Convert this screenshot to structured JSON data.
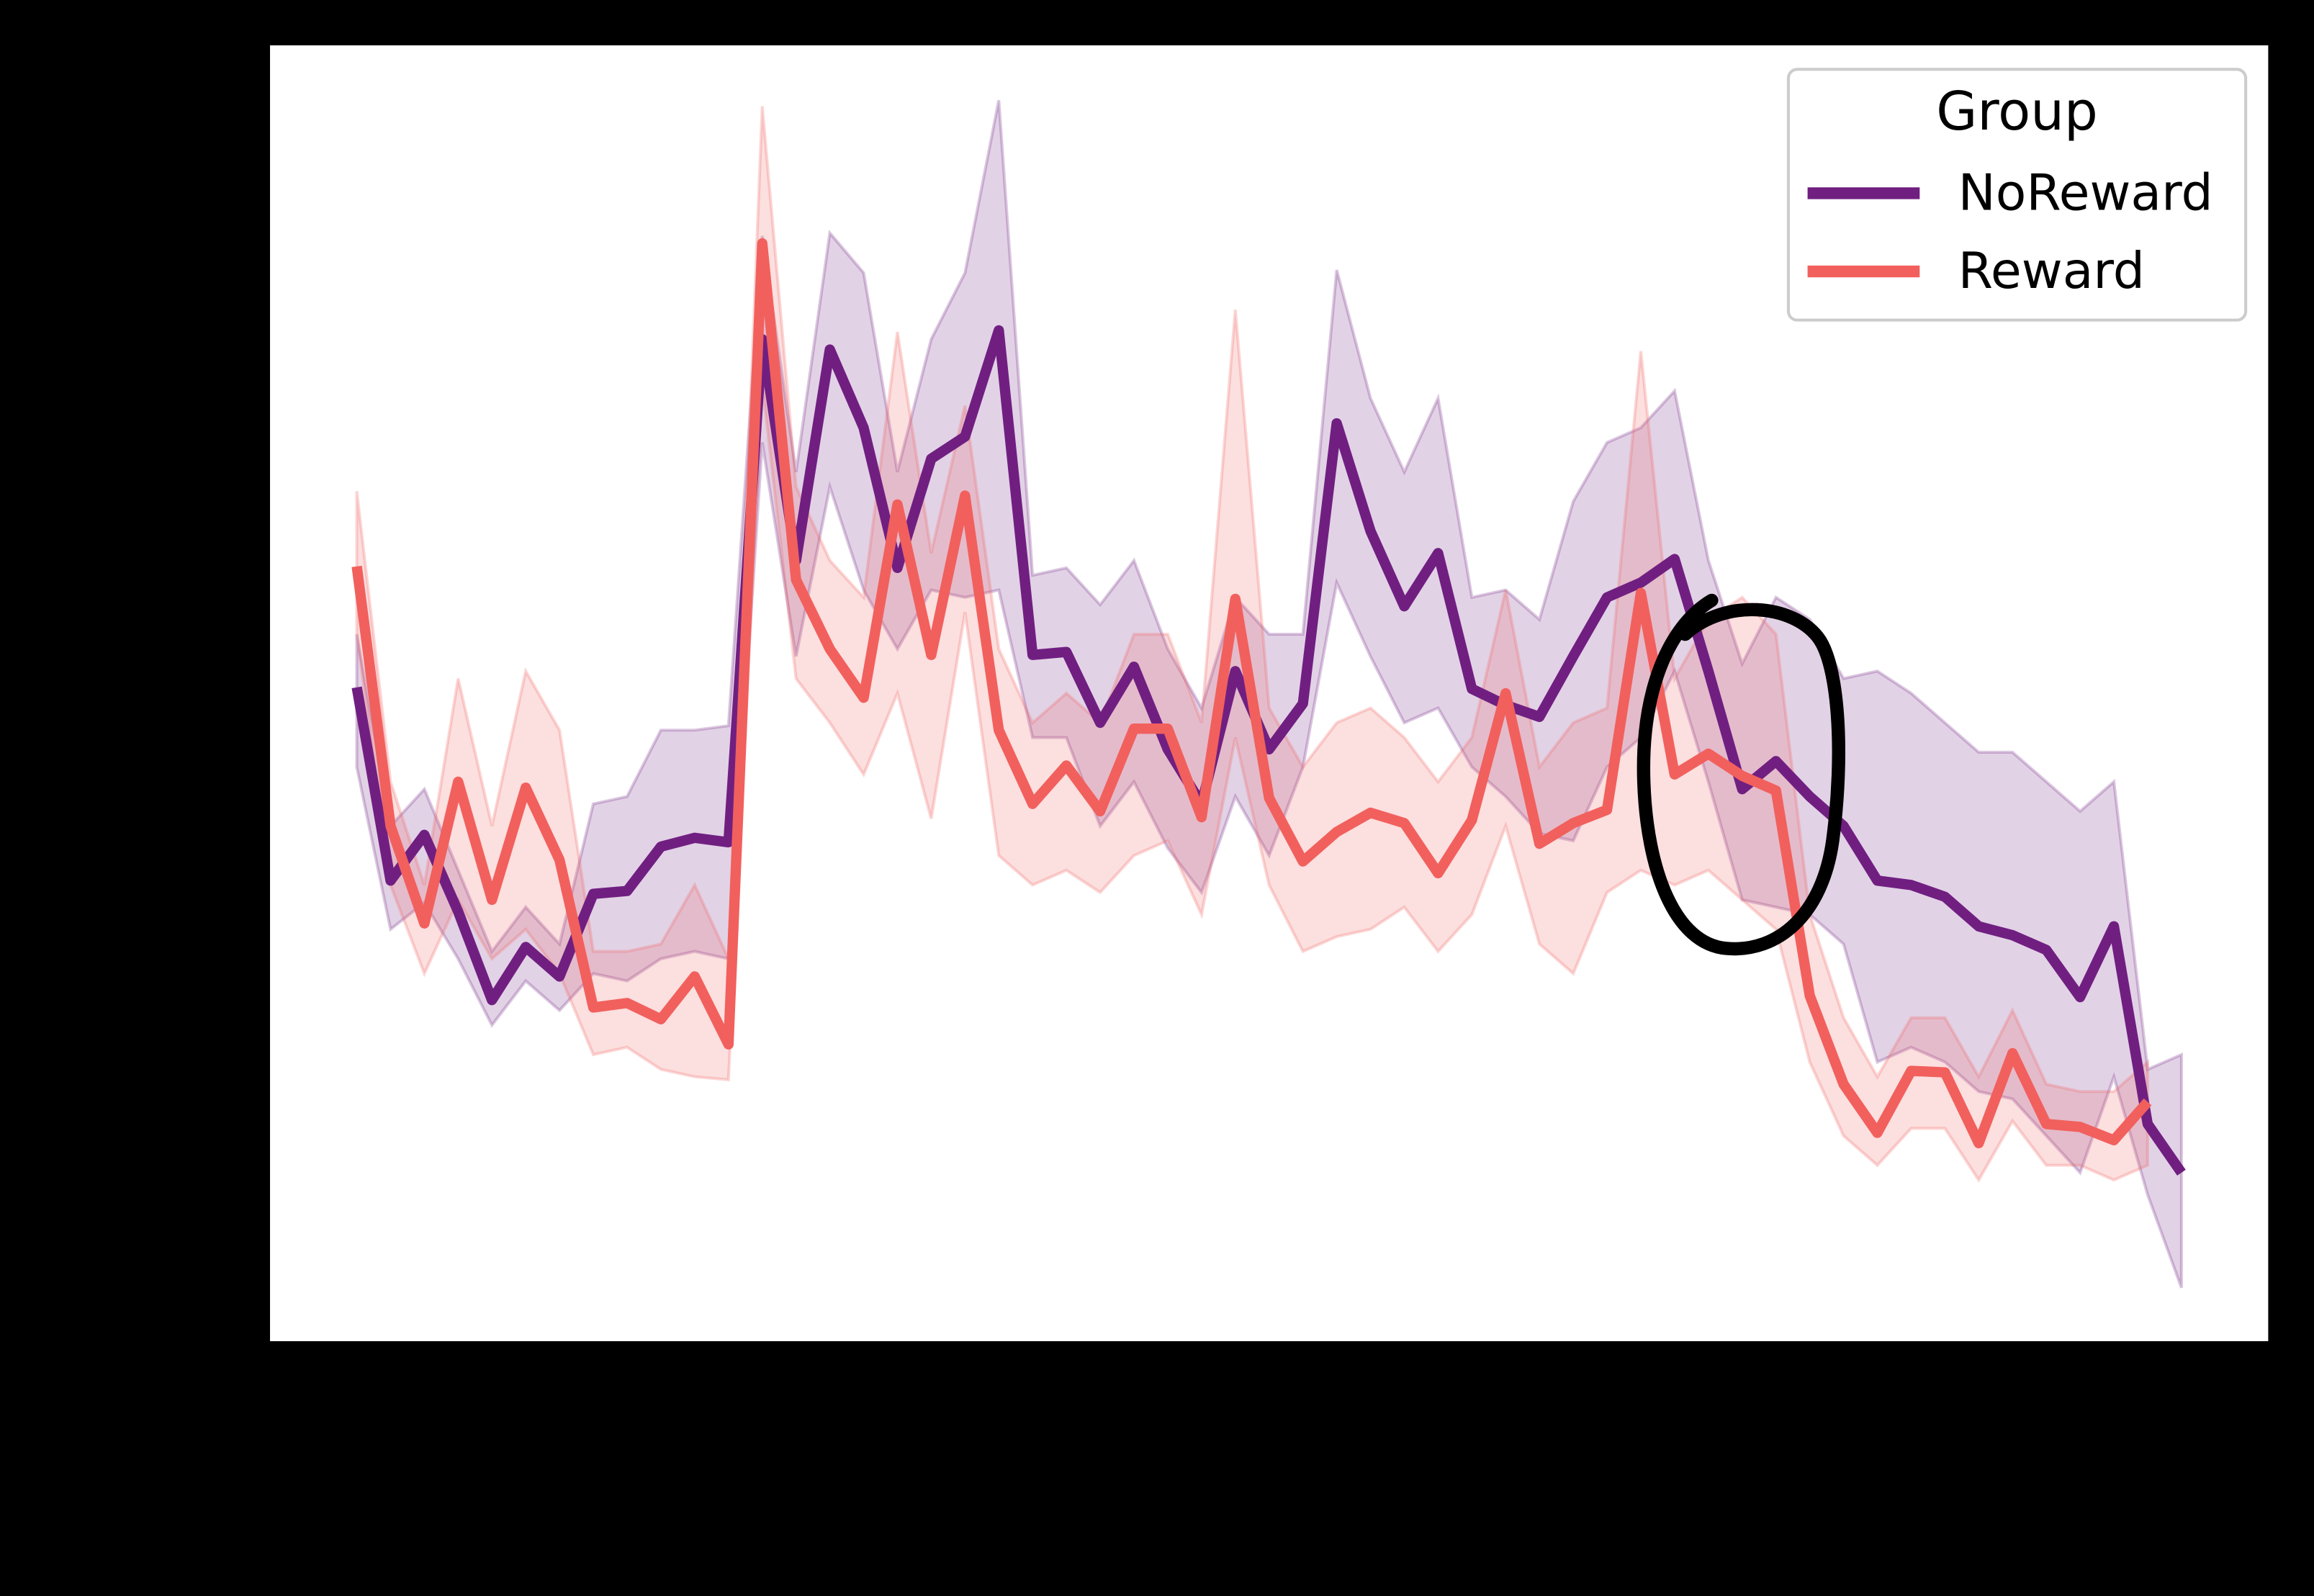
{
  "chart_data": {
    "type": "line",
    "legend_title": "Group",
    "legend": "upper right",
    "x": [
      0,
      1,
      2,
      3,
      4,
      5,
      6,
      7,
      8,
      9,
      10,
      11,
      12,
      13,
      14,
      15,
      16,
      17,
      18,
      19,
      20,
      21,
      22,
      23,
      24,
      25,
      26,
      27,
      28,
      29,
      30,
      31,
      32,
      33,
      34,
      35,
      36,
      37,
      38,
      39,
      40,
      41,
      42,
      43,
      44,
      45,
      46,
      47,
      48,
      49,
      50,
      51,
      52,
      53,
      54
    ],
    "xlim": [
      -2.6,
      56.6
    ],
    "ylim": [
      0,
      880
    ],
    "series": [
      {
        "name": "NoReward",
        "color": "#701f81",
        "values": [
          444,
          313,
          344,
          292,
          232,
          268,
          248,
          304,
          306,
          336,
          342,
          339,
          680,
          530,
          673,
          620,
          525,
          599,
          614,
          686,
          466,
          468,
          420,
          458,
          402,
          365,
          455,
          402,
          433,
          623,
          550,
          499,
          535,
          443,
          432,
          424,
          465,
          505,
          515,
          531,
          455,
          375,
          394,
          370,
          350,
          313,
          310,
          302,
          282,
          276,
          266,
          234,
          282,
          148,
          115
        ],
        "upper": [
          480,
          350,
          375,
          320,
          265,
          295,
          270,
          365,
          370,
          415,
          415,
          418,
          750,
          590,
          752,
          725,
          590,
          680,
          725,
          842,
          520,
          525,
          500,
          530,
          470,
          430,
          505,
          480,
          480,
          727,
          640,
          590,
          640,
          505,
          510,
          490,
          570,
          610,
          620,
          645,
          530,
          460,
          505,
          490,
          450,
          455,
          440,
          420,
          400,
          400,
          380,
          360,
          380,
          185,
          195
        ],
        "lower": [
          390,
          280,
          298,
          260,
          215,
          245,
          225,
          250,
          245,
          260,
          265,
          260,
          610,
          465,
          580,
          510,
          470,
          510,
          505,
          510,
          410,
          410,
          350,
          380,
          335,
          305,
          370,
          330,
          390,
          515,
          465,
          420,
          430,
          390,
          370,
          345,
          340,
          390,
          410,
          455,
          380,
          300,
          295,
          290,
          270,
          190,
          200,
          190,
          170,
          165,
          140,
          115,
          180,
          100,
          37
        ]
      },
      {
        "name": "Reward",
        "color": "#f1605d",
        "values": [
          526,
          350,
          284,
          380,
          300,
          376,
          327,
          227,
          230,
          219,
          248,
          202,
          745,
          517,
          470,
          437,
          568,
          466,
          574,
          415,
          365,
          391,
          360,
          416,
          416,
          356,
          504,
          369,
          326,
          346,
          359,
          352,
          318,
          354,
          440,
          338,
          352,
          361,
          508,
          385,
          399,
          384,
          374,
          235,
          175,
          142,
          184,
          183,
          135,
          196,
          148,
          146,
          137,
          163,
          null
        ],
        "upper": [
          577,
          380,
          310,
          450,
          350,
          455,
          415,
          265,
          265,
          270,
          310,
          260,
          838,
          580,
          530,
          505,
          685,
          535,
          635,
          470,
          420,
          440,
          420,
          480,
          480,
          420,
          700,
          430,
          390,
          420,
          430,
          410,
          380,
          410,
          510,
          390,
          420,
          430,
          672,
          450,
          490,
          505,
          480,
          290,
          220,
          180,
          220,
          220,
          180,
          225,
          175,
          170,
          170,
          190,
          null
        ],
        "lower": [
          480,
          310,
          250,
          300,
          260,
          280,
          250,
          195,
          200,
          185,
          180,
          178,
          650,
          450,
          420,
          385,
          440,
          355,
          495,
          330,
          310,
          320,
          305,
          330,
          340,
          290,
          410,
          310,
          265,
          275,
          280,
          295,
          265,
          290,
          350,
          270,
          250,
          305,
          320,
          310,
          320,
          300,
          280,
          190,
          140,
          120,
          145,
          145,
          110,
          150,
          120,
          120,
          110,
          120,
          null
        ]
      }
    ]
  }
}
